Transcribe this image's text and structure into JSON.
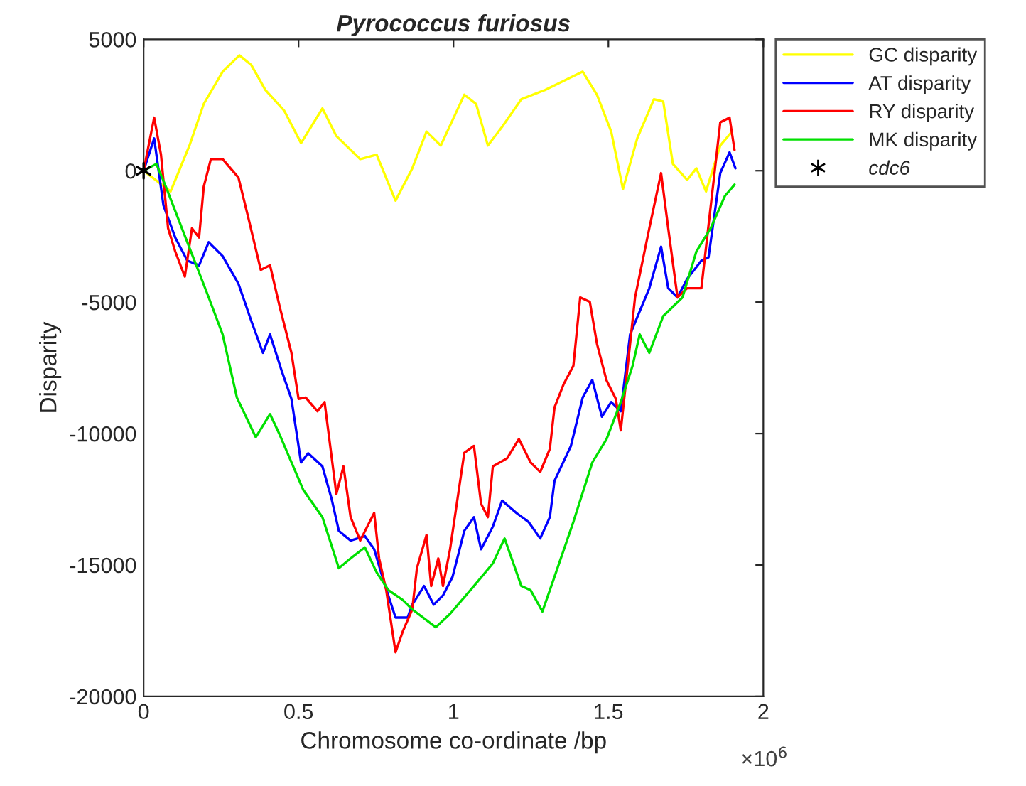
{
  "chart_data": {
    "type": "line",
    "title": "Pyrococcus furiosus",
    "xlabel": "Chromosome co-ordinate /bp",
    "ylabel": "Disparity",
    "xlim": [
      0,
      2
    ],
    "xticks": [
      0,
      0.5,
      1,
      1.5,
      2
    ],
    "ylim": [
      -20000,
      5000
    ],
    "yticks": [
      -20000,
      -15000,
      -10000,
      -5000,
      0,
      5000
    ],
    "annotations": [
      "×10$^{6}$"
    ],
    "legend": "top right",
    "grid": false,
    "series": [
      {
        "name": "GC disparity",
        "color": "#ffff00",
        "x": [
          0,
          0.087,
          0.148,
          0.194,
          0.255,
          0.309,
          0.347,
          0.393,
          0.454,
          0.508,
          0.577,
          0.622,
          0.699,
          0.752,
          0.813,
          0.867,
          0.913,
          0.959,
          1.035,
          1.073,
          1.111,
          1.157,
          1.219,
          1.295,
          1.356,
          1.417,
          1.463,
          1.509,
          1.547,
          1.593,
          1.647,
          1.677,
          1.708,
          1.754,
          1.784,
          1.815,
          1.861,
          1.899
        ],
        "values": [
          0,
          -790,
          960,
          2540,
          3770,
          4390,
          4030,
          3070,
          2280,
          1050,
          2370,
          1320,
          440,
          610,
          -1140,
          90,
          1490,
          960,
          2890,
          2540,
          960,
          1670,
          2720,
          3070,
          3420,
          3770,
          2890,
          1490,
          -700,
          1230,
          2720,
          2630,
          260,
          -350,
          90,
          -790,
          960,
          1490
        ]
      },
      {
        "name": "AT disparity",
        "color": "#0000ff",
        "x": [
          0,
          0.034,
          0.064,
          0.102,
          0.141,
          0.179,
          0.21,
          0.255,
          0.306,
          0.347,
          0.385,
          0.408,
          0.446,
          0.477,
          0.508,
          0.531,
          0.577,
          0.607,
          0.63,
          0.668,
          0.714,
          0.744,
          0.775,
          0.813,
          0.852,
          0.867,
          0.905,
          0.936,
          0.966,
          0.997,
          1.035,
          1.066,
          1.089,
          1.127,
          1.157,
          1.203,
          1.242,
          1.28,
          1.311,
          1.326,
          1.379,
          1.417,
          1.448,
          1.479,
          1.509,
          1.54,
          1.57,
          1.632,
          1.67,
          1.693,
          1.723,
          1.754,
          1.8,
          1.823,
          1.861,
          1.891,
          1.91
        ],
        "values": [
          0,
          1230,
          -1320,
          -2540,
          -3420,
          -3600,
          -2720,
          -3250,
          -4300,
          -5700,
          -6930,
          -6230,
          -7630,
          -8680,
          -11100,
          -10750,
          -11250,
          -12500,
          -13700,
          -14070,
          -13900,
          -14400,
          -15630,
          -17000,
          -17000,
          -16510,
          -15800,
          -16510,
          -16160,
          -15450,
          -13700,
          -13180,
          -14400,
          -13540,
          -12550,
          -13020,
          -13360,
          -13990,
          -13180,
          -11800,
          -10470,
          -8630,
          -7960,
          -9360,
          -8800,
          -9150,
          -6230,
          -4470,
          -2890,
          -4470,
          -4820,
          -4120,
          -3420,
          -3300,
          -90,
          700,
          90
        ]
      },
      {
        "name": "RY disparity",
        "color": "#ff0000",
        "x": [
          0,
          0.034,
          0.056,
          0.079,
          0.102,
          0.133,
          0.156,
          0.179,
          0.194,
          0.217,
          0.255,
          0.306,
          0.339,
          0.378,
          0.408,
          0.439,
          0.477,
          0.5,
          0.523,
          0.561,
          0.584,
          0.622,
          0.645,
          0.668,
          0.699,
          0.744,
          0.76,
          0.783,
          0.813,
          0.836,
          0.867,
          0.882,
          0.913,
          0.928,
          0.951,
          0.966,
          0.989,
          1.035,
          1.066,
          1.089,
          1.111,
          1.127,
          1.173,
          1.211,
          1.249,
          1.28,
          1.311,
          1.326,
          1.356,
          1.387,
          1.409,
          1.44,
          1.463,
          1.494,
          1.524,
          1.54,
          1.586,
          1.632,
          1.67,
          1.693,
          1.723,
          1.754,
          1.8,
          1.861,
          1.891,
          1.907
        ],
        "values": [
          0,
          2020,
          610,
          -2190,
          -3070,
          -4030,
          -2190,
          -2540,
          -610,
          440,
          440,
          -260,
          -1840,
          -3770,
          -3600,
          -5170,
          -6930,
          -8680,
          -8630,
          -9150,
          -8800,
          -12300,
          -11250,
          -13180,
          -14070,
          -13020,
          -14750,
          -15960,
          -18320,
          -17540,
          -16690,
          -15120,
          -13860,
          -15800,
          -14750,
          -15800,
          -14400,
          -10730,
          -10470,
          -12670,
          -13180,
          -11250,
          -10940,
          -10210,
          -11100,
          -11460,
          -10580,
          -9010,
          -8110,
          -7420,
          -4820,
          -4990,
          -6580,
          -7980,
          -8680,
          -9880,
          -4820,
          -2190,
          -90,
          -2190,
          -4820,
          -4470,
          -4470,
          1840,
          2020,
          790
        ]
      },
      {
        "name": "MK disparity",
        "color": "#00e000",
        "x": [
          0,
          0.041,
          0.072,
          0.118,
          0.164,
          0.21,
          0.255,
          0.301,
          0.362,
          0.408,
          0.439,
          0.515,
          0.577,
          0.63,
          0.668,
          0.714,
          0.752,
          0.79,
          0.836,
          0.867,
          0.943,
          0.989,
          1.066,
          1.127,
          1.165,
          1.219,
          1.249,
          1.287,
          1.326,
          1.387,
          1.448,
          1.494,
          1.54,
          1.578,
          1.601,
          1.632,
          1.677,
          1.739,
          1.784,
          1.83,
          1.876,
          1.907
        ],
        "values": [
          0,
          260,
          -610,
          -2020,
          -3420,
          -4820,
          -6230,
          -8630,
          -10140,
          -9260,
          -10040,
          -12140,
          -13180,
          -15120,
          -14750,
          -14330,
          -15280,
          -15960,
          -16330,
          -16690,
          -17370,
          -16860,
          -15800,
          -14940,
          -13990,
          -15800,
          -15960,
          -16770,
          -15450,
          -13360,
          -11100,
          -10210,
          -8800,
          -7420,
          -6230,
          -6930,
          -5530,
          -4820,
          -3070,
          -2190,
          -960,
          -530
        ]
      },
      {
        "name": "cdc6",
        "type": "scatter",
        "marker": "cross",
        "color": "#000000",
        "x": [
          0
        ],
        "values": [
          0
        ]
      }
    ]
  }
}
